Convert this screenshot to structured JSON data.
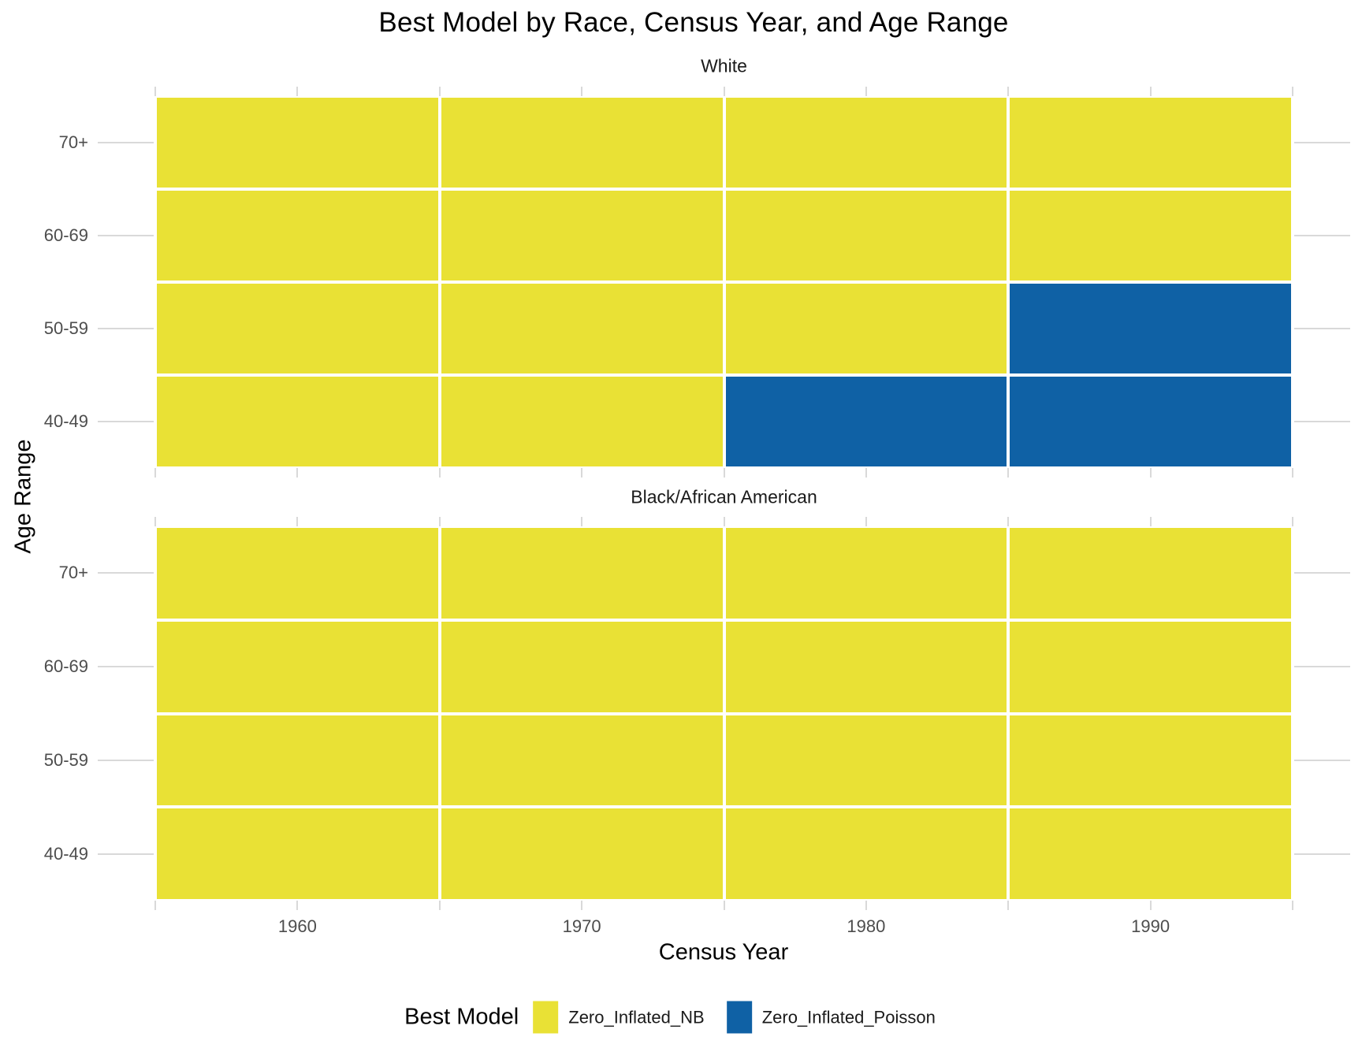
{
  "title": "Best Model by Race, Census Year, and Age Range",
  "chart_data": {
    "type": "heatmap",
    "title": "Best Model by Race, Census Year, and Age Range",
    "xlabel": "Census Year",
    "ylabel": "Age Range",
    "x_categories": [
      "1960",
      "1970",
      "1980",
      "1990"
    ],
    "y_categories": [
      "70+",
      "60-69",
      "50-59",
      "40-49"
    ],
    "grid": true,
    "facets": [
      {
        "label": "White",
        "values": [
          [
            "Zero_Inflated_NB",
            "Zero_Inflated_NB",
            "Zero_Inflated_NB",
            "Zero_Inflated_NB"
          ],
          [
            "Zero_Inflated_NB",
            "Zero_Inflated_NB",
            "Zero_Inflated_NB",
            "Zero_Inflated_NB"
          ],
          [
            "Zero_Inflated_NB",
            "Zero_Inflated_NB",
            "Zero_Inflated_NB",
            "Zero_Inflated_Poisson"
          ],
          [
            "Zero_Inflated_NB",
            "Zero_Inflated_NB",
            "Zero_Inflated_Poisson",
            "Zero_Inflated_Poisson"
          ]
        ]
      },
      {
        "label": "Black/African American",
        "values": [
          [
            "Zero_Inflated_NB",
            "Zero_Inflated_NB",
            "Zero_Inflated_NB",
            "Zero_Inflated_NB"
          ],
          [
            "Zero_Inflated_NB",
            "Zero_Inflated_NB",
            "Zero_Inflated_NB",
            "Zero_Inflated_NB"
          ],
          [
            "Zero_Inflated_NB",
            "Zero_Inflated_NB",
            "Zero_Inflated_NB",
            "Zero_Inflated_NB"
          ],
          [
            "Zero_Inflated_NB",
            "Zero_Inflated_NB",
            "Zero_Inflated_NB",
            "Zero_Inflated_NB"
          ]
        ]
      }
    ],
    "legend": {
      "title": "Best Model",
      "position": "bottom",
      "entries": [
        {
          "label": "Zero_Inflated_NB",
          "color": "#E9E135"
        },
        {
          "label": "Zero_Inflated_Poisson",
          "color": "#0F61A5"
        }
      ]
    }
  },
  "colors": {
    "background": "#FFFFFF",
    "grid": "#D9D9D9",
    "axis_text": "#4D4D4D",
    "strip_text": "#1A1A1A",
    "title_text": "#000000"
  }
}
